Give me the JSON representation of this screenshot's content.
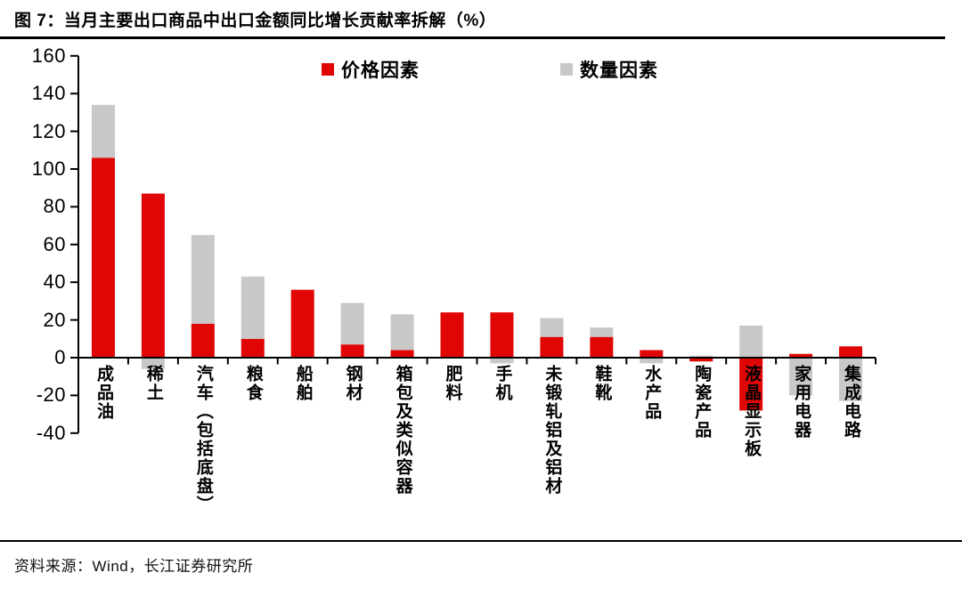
{
  "title": "图 7：当月主要出口商品中出口金额同比增长贡献率拆解（%）",
  "source": "资料来源：Wind，长江证券研究所",
  "colors": {
    "price": "#e00606",
    "quantity": "#c8c8c8",
    "axis": "#000000"
  },
  "legend": {
    "items": [
      {
        "label": "价格因素"
      },
      {
        "label": "数量因素"
      }
    ]
  },
  "chart_data": {
    "type": "bar",
    "stacked": true,
    "title": "当月主要出口商品中出口金额同比增长贡献率拆解（%）",
    "xlabel": "",
    "ylabel": "",
    "ylim": [
      -40,
      160
    ],
    "yticks": [
      160,
      140,
      120,
      100,
      80,
      60,
      40,
      20,
      0,
      -20,
      -40
    ],
    "grid": false,
    "legend_position": "top-center",
    "categories": [
      "成品油",
      "稀土",
      "汽车（包括底盘）",
      "粮食",
      "船舶",
      "钢材",
      "箱包及类似容器",
      "肥料",
      "手机",
      "未锻轧铝及铝材",
      "鞋靴",
      "水产品",
      "陶瓷产品",
      "液晶显示板",
      "家用电器",
      "集成电路"
    ],
    "series": [
      {
        "name": "价格因素",
        "color": "#e00606",
        "values": [
          106,
          87,
          18,
          10,
          36,
          7,
          4,
          24,
          24,
          11,
          11,
          4,
          -2,
          -28,
          2,
          6
        ]
      },
      {
        "name": "数量因素",
        "color": "#c8c8c8",
        "values": [
          28,
          -6,
          47,
          33,
          0,
          22,
          19,
          0,
          -3,
          10,
          5,
          -3,
          1,
          17,
          -20,
          -23
        ]
      }
    ]
  }
}
